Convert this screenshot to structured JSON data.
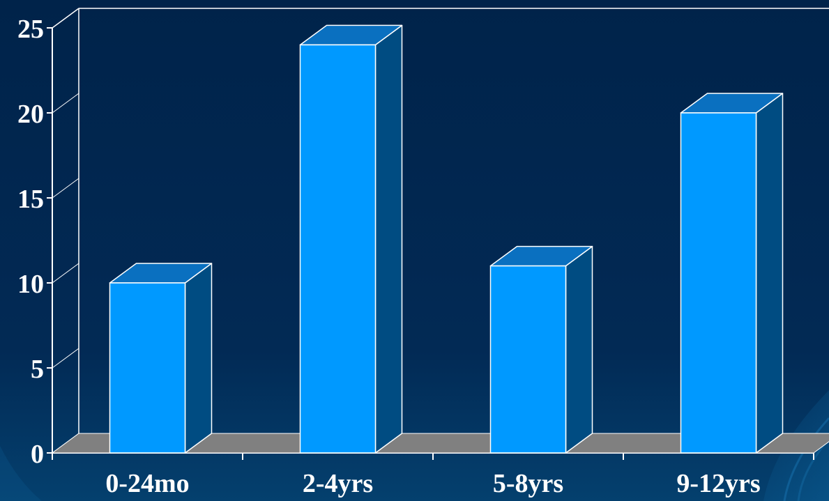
{
  "chart_data": {
    "type": "bar",
    "style": "3d",
    "categories": [
      "0-24mo",
      "2-4yrs",
      "5-8yrs",
      "9-12yrs"
    ],
    "values": [
      10,
      24,
      11,
      20
    ],
    "yticks": [
      "0",
      "5",
      "10",
      "15",
      "20",
      "25"
    ],
    "ylim": [
      0,
      25
    ],
    "title": "",
    "xlabel": "",
    "ylabel": "",
    "grid": false,
    "legend": "none"
  },
  "colors": {
    "background_top": "#00234a",
    "background_bottom": "#04406e",
    "bar_front": "#0099ff",
    "bar_top": "#0a70c0",
    "bar_side": "#004c82",
    "floor": "#808080",
    "axis": "#ffffff",
    "text": "#ffffff"
  }
}
